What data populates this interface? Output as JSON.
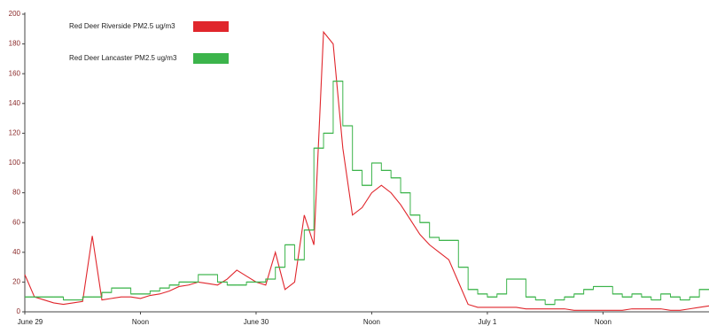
{
  "chart_data": {
    "type": "line",
    "x": [
      0,
      1,
      2,
      3,
      4,
      5,
      6,
      7,
      8,
      9,
      10,
      11,
      12,
      13,
      14,
      15,
      16,
      17,
      18,
      19,
      20,
      21,
      22,
      23,
      24,
      25,
      26,
      27,
      28,
      29,
      30,
      31,
      32,
      33,
      34,
      35,
      36,
      37,
      38,
      39,
      40,
      41,
      42,
      43,
      44,
      45,
      46,
      47,
      48,
      49,
      50,
      51,
      52,
      53,
      54,
      55,
      56,
      57,
      58,
      59,
      60,
      61,
      62,
      63,
      64,
      65,
      66,
      67,
      68,
      69,
      70,
      71
    ],
    "series": [
      {
        "name": "Red Deer Riverside PM2.5 ug/m3",
        "color": "#e0262c",
        "step": false,
        "values": [
          25,
          10,
          8,
          6,
          5,
          6,
          7,
          51,
          8,
          9,
          10,
          10,
          9,
          11,
          12,
          14,
          17,
          18,
          20,
          19,
          18,
          22,
          28,
          24,
          20,
          18,
          40,
          15,
          20,
          65,
          45,
          188,
          180,
          110,
          65,
          70,
          80,
          85,
          80,
          72,
          62,
          52,
          45,
          40,
          35,
          20,
          5,
          3,
          3,
          3,
          3,
          3,
          2,
          2,
          2,
          2,
          2,
          1,
          1,
          1,
          1,
          1,
          1,
          2,
          2,
          2,
          2,
          1,
          1,
          2,
          3,
          4
        ]
      },
      {
        "name": "Red Deer Lancaster PM2.5 ug/m3",
        "color": "#3cb44b",
        "step": true,
        "values": [
          10,
          10,
          10,
          10,
          8,
          8,
          10,
          10,
          13,
          16,
          16,
          12,
          12,
          14,
          16,
          18,
          20,
          20,
          25,
          25,
          20,
          18,
          18,
          20,
          20,
          22,
          30,
          45,
          35,
          55,
          110,
          120,
          155,
          125,
          95,
          85,
          100,
          95,
          90,
          80,
          65,
          60,
          50,
          48,
          48,
          30,
          15,
          12,
          10,
          12,
          22,
          22,
          10,
          8,
          5,
          8,
          10,
          12,
          15,
          17,
          17,
          12,
          10,
          12,
          10,
          8,
          12,
          10,
          8,
          10,
          15,
          15
        ]
      }
    ],
    "xlim": [
      0,
      71
    ],
    "xticks": [
      {
        "value": 0,
        "label": "June 29"
      },
      {
        "value": 12,
        "label": "Noon"
      },
      {
        "value": 24,
        "label": "June 30"
      },
      {
        "value": 36,
        "label": "Noon"
      },
      {
        "value": 48,
        "label": "July 1"
      },
      {
        "value": 60,
        "label": "Noon"
      }
    ],
    "ylim": [
      0,
      200
    ],
    "yticks": [
      0,
      20,
      40,
      60,
      80,
      100,
      120,
      140,
      160,
      180,
      200
    ],
    "grid": false
  }
}
